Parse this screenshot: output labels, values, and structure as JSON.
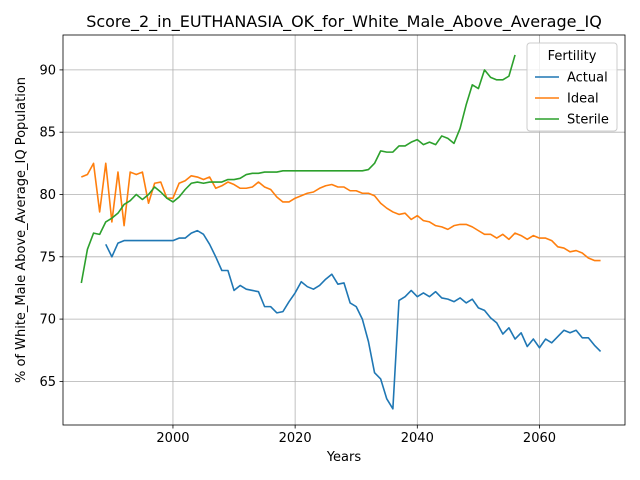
{
  "chart_data": {
    "type": "line",
    "title": "Score_2_in_EUTHANASIA_OK_for_White_Male_Above_Average_IQ",
    "xlabel": "Years",
    "ylabel": "% of White_Male Above_Average_IQ Population",
    "xlim": [
      1982,
      2074
    ],
    "ylim": [
      61.5,
      92.8
    ],
    "xticks": [
      2000,
      2020,
      2040,
      2060
    ],
    "yticks": [
      65,
      70,
      75,
      80,
      85,
      90
    ],
    "grid": true,
    "legend": {
      "title": "Fertility",
      "position": "top-right"
    },
    "series": [
      {
        "name": "Actual",
        "color": "#1f77b4",
        "x": [
          1989,
          1990,
          1991,
          1992,
          1993,
          1994,
          1995,
          1996,
          1997,
          1998,
          1999,
          2000,
          2001,
          2002,
          2003,
          2004,
          2005,
          2006,
          2007,
          2008,
          2009,
          2010,
          2011,
          2012,
          2013,
          2014,
          2015,
          2016,
          2017,
          2018,
          2019,
          2020,
          2021,
          2022,
          2023,
          2024,
          2025,
          2026,
          2027,
          2028,
          2029,
          2030,
          2031,
          2032,
          2033,
          2034,
          2035,
          2036,
          2037,
          2038,
          2039,
          2040,
          2041,
          2042,
          2043,
          2044,
          2045,
          2046,
          2047,
          2048,
          2049,
          2050,
          2051,
          2052,
          2053,
          2054,
          2055,
          2056,
          2057,
          2058,
          2059,
          2060,
          2061,
          2062,
          2063,
          2064,
          2065,
          2066,
          2067,
          2068,
          2069,
          2070
        ],
        "y": [
          76.0,
          75.0,
          76.1,
          76.3,
          76.3,
          76.3,
          76.3,
          76.3,
          76.3,
          76.3,
          76.3,
          76.3,
          76.5,
          76.5,
          76.9,
          77.1,
          76.8,
          76.0,
          75.0,
          73.9,
          73.9,
          72.3,
          72.7,
          72.4,
          72.3,
          72.2,
          71.0,
          71.0,
          70.5,
          70.6,
          71.4,
          72.1,
          73.0,
          72.6,
          72.4,
          72.7,
          73.2,
          73.6,
          72.8,
          72.9,
          71.3,
          71.0,
          70.0,
          68.2,
          65.7,
          65.2,
          63.6,
          62.8,
          71.5,
          71.8,
          72.3,
          71.8,
          72.1,
          71.8,
          72.2,
          71.7,
          71.6,
          71.4,
          71.7,
          71.3,
          71.6,
          70.9,
          70.7,
          70.1,
          69.7,
          68.8,
          69.3,
          68.4,
          68.9,
          67.8,
          68.4,
          67.7,
          68.4,
          68.1,
          68.6,
          69.1,
          68.9,
          69.1,
          68.5,
          68.5,
          67.9,
          67.4
        ]
      },
      {
        "name": "Ideal",
        "color": "#ff7f0e",
        "x": [
          1985,
          1986,
          1987,
          1988,
          1989,
          1990,
          1991,
          1992,
          1993,
          1994,
          1995,
          1996,
          1997,
          1998,
          1999,
          2000,
          2001,
          2002,
          2003,
          2004,
          2005,
          2006,
          2007,
          2008,
          2009,
          2010,
          2011,
          2012,
          2013,
          2014,
          2015,
          2016,
          2017,
          2018,
          2019,
          2020,
          2021,
          2022,
          2023,
          2024,
          2025,
          2026,
          2027,
          2028,
          2029,
          2030,
          2031,
          2032,
          2033,
          2034,
          2035,
          2036,
          2037,
          2038,
          2039,
          2040,
          2041,
          2042,
          2043,
          2044,
          2045,
          2046,
          2047,
          2048,
          2049,
          2050,
          2051,
          2052,
          2053,
          2054,
          2055,
          2056,
          2057,
          2058,
          2059,
          2060,
          2061,
          2062,
          2063,
          2064,
          2065,
          2066,
          2067,
          2068,
          2069,
          2070
        ],
        "y": [
          81.4,
          81.6,
          82.5,
          78.6,
          82.5,
          77.8,
          81.8,
          77.5,
          81.8,
          81.6,
          81.8,
          79.3,
          80.9,
          81.0,
          79.7,
          79.7,
          80.9,
          81.1,
          81.5,
          81.4,
          81.2,
          81.4,
          80.5,
          80.7,
          81.0,
          80.8,
          80.5,
          80.5,
          80.6,
          81.0,
          80.6,
          80.4,
          79.8,
          79.4,
          79.4,
          79.7,
          79.9,
          80.1,
          80.2,
          80.5,
          80.7,
          80.8,
          80.6,
          80.6,
          80.3,
          80.3,
          80.1,
          80.1,
          79.9,
          79.3,
          78.9,
          78.6,
          78.4,
          78.5,
          78.0,
          78.3,
          77.9,
          77.8,
          77.5,
          77.4,
          77.2,
          77.5,
          77.6,
          77.6,
          77.4,
          77.1,
          76.8,
          76.8,
          76.5,
          76.8,
          76.4,
          76.9,
          76.7,
          76.4,
          76.7,
          76.5,
          76.5,
          76.3,
          75.8,
          75.7,
          75.4,
          75.5,
          75.3,
          74.9,
          74.7,
          74.7
        ]
      },
      {
        "name": "Sterile",
        "color": "#2ca02c",
        "x": [
          1985,
          1986,
          1987,
          1988,
          1989,
          1990,
          1991,
          1992,
          1993,
          1994,
          1995,
          1996,
          1997,
          1998,
          1999,
          2000,
          2001,
          2002,
          2003,
          2004,
          2005,
          2006,
          2007,
          2008,
          2009,
          2010,
          2011,
          2012,
          2013,
          2014,
          2015,
          2016,
          2017,
          2018,
          2019,
          2020,
          2021,
          2022,
          2023,
          2024,
          2025,
          2026,
          2027,
          2028,
          2029,
          2030,
          2031,
          2032,
          2033,
          2034,
          2035,
          2036,
          2037,
          2038,
          2039,
          2040,
          2041,
          2042,
          2043,
          2044,
          2045,
          2046,
          2047,
          2048,
          2049,
          2050,
          2051,
          2052,
          2053,
          2054,
          2055,
          2056
        ],
        "y": [
          72.9,
          75.6,
          76.9,
          76.8,
          77.8,
          78.1,
          78.5,
          79.2,
          79.5,
          80.0,
          79.6,
          80.0,
          80.6,
          80.2,
          79.7,
          79.4,
          79.8,
          80.4,
          80.9,
          81.0,
          80.9,
          81.0,
          81.0,
          81.0,
          81.2,
          81.2,
          81.3,
          81.6,
          81.7,
          81.7,
          81.8,
          81.8,
          81.8,
          81.9,
          81.9,
          81.9,
          81.9,
          81.9,
          81.9,
          81.9,
          81.9,
          81.9,
          81.9,
          81.9,
          81.9,
          81.9,
          81.9,
          82.0,
          82.5,
          83.5,
          83.4,
          83.4,
          83.9,
          83.9,
          84.2,
          84.4,
          84.0,
          84.2,
          84.0,
          84.7,
          84.5,
          84.1,
          85.3,
          87.2,
          88.8,
          88.5,
          90.0,
          89.4,
          89.2,
          89.2,
          89.5,
          91.2
        ]
      }
    ]
  }
}
